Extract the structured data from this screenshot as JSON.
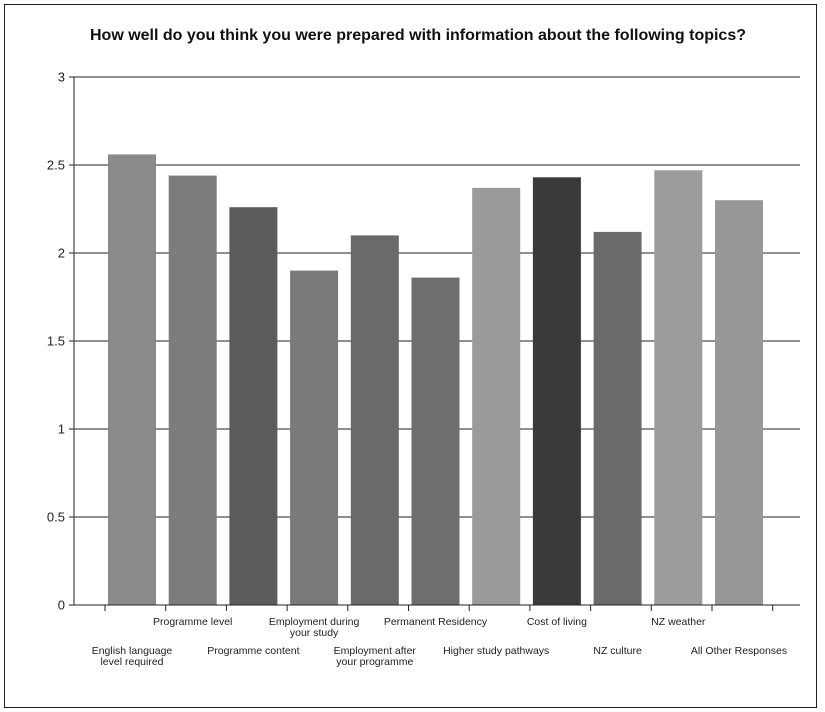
{
  "chart_data": {
    "type": "bar",
    "title": "How well do you think you were prepared with information about the following topics?",
    "xlabel": "",
    "ylabel": "",
    "ylim": [
      0,
      3
    ],
    "yticks": [
      "0",
      "0.5",
      "1",
      "1.5",
      "2",
      "2.5",
      "3"
    ],
    "grid": true,
    "legend": "none",
    "categories": [
      "English language level required",
      "Programme level",
      "Programme content",
      "Employment during your study",
      "Employment after your programme",
      "Permanent Residency",
      "Higher study pathways",
      "Cost of living",
      "NZ culture",
      "NZ weather",
      "All Other Responses"
    ],
    "category_labels": [
      [
        "English language",
        "level required"
      ],
      [
        "Programme level"
      ],
      [
        "Programme content"
      ],
      [
        "Employment during",
        "your study"
      ],
      [
        "Employment after",
        "your programme"
      ],
      [
        "Permanent Residency"
      ],
      [
        "Higher study pathways"
      ],
      [
        "Cost of living"
      ],
      [
        "NZ culture"
      ],
      [
        "NZ weather"
      ],
      [
        "All Other Responses"
      ]
    ],
    "values": [
      2.56,
      2.44,
      2.26,
      1.9,
      2.1,
      1.86,
      2.37,
      2.43,
      2.12,
      2.47,
      2.3
    ],
    "bar_colors": [
      "#8a8a8a",
      "#7c7c7c",
      "#5c5c5c",
      "#7a7a7a",
      "#6a6a6a",
      "#6e6e6e",
      "#9a9a9a",
      "#3a3a3a",
      "#6a6a6a",
      "#9c9c9c",
      "#979797"
    ]
  }
}
